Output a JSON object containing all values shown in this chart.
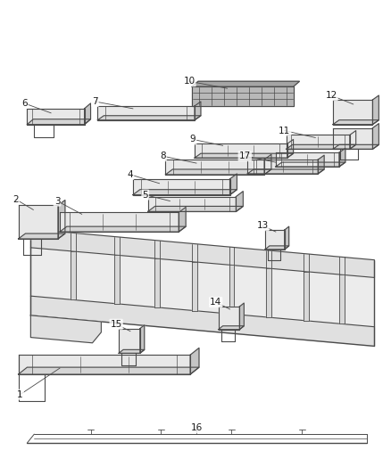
{
  "bg_color": "#ffffff",
  "line_color": "#4a4a4a",
  "label_color": "#1a1a1a",
  "fig_width": 4.38,
  "fig_height": 5.33,
  "dpi": 100
}
